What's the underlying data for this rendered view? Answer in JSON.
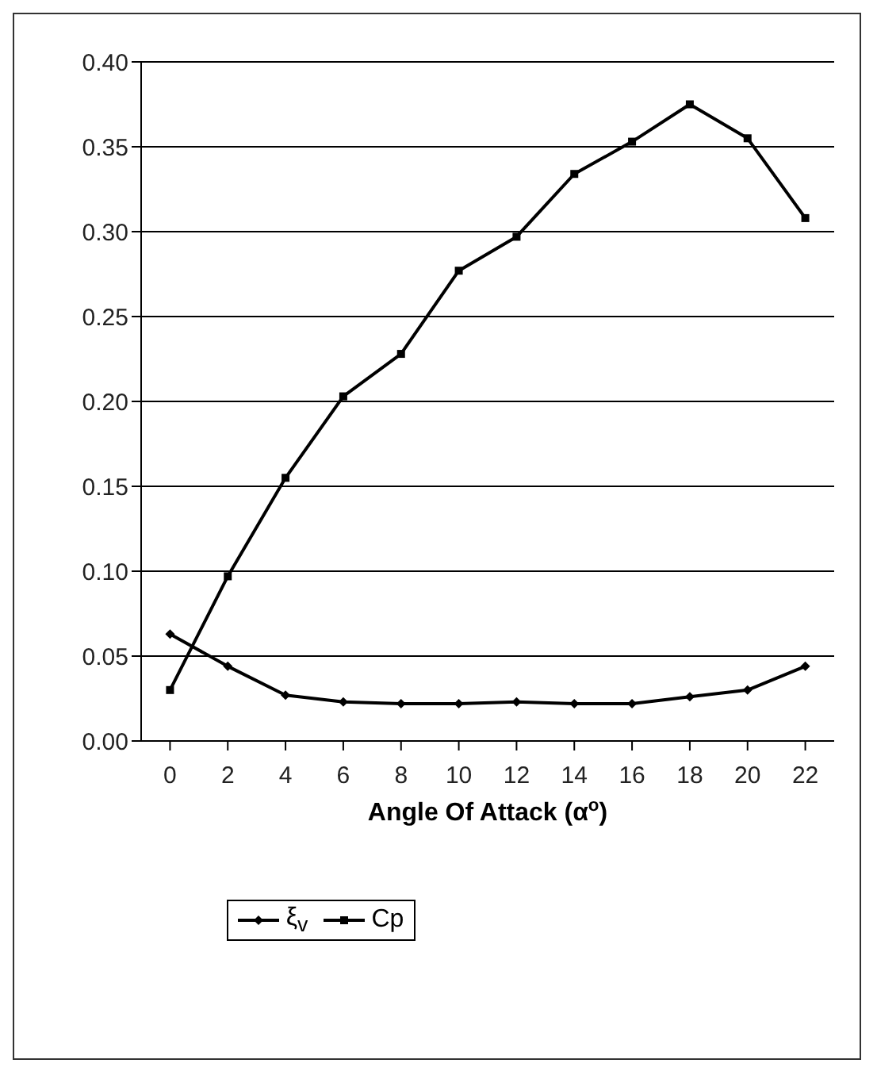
{
  "chart_data": {
    "type": "line",
    "xlabel": "Angle Of Attack (α$^{o}$)",
    "categories": [
      "0",
      "2",
      "4",
      "6",
      "8",
      "10",
      "12",
      "14",
      "16",
      "18",
      "20",
      "22"
    ],
    "series": [
      {
        "name": "ξ$_{v}$",
        "color": "#000000",
        "marker": "diamond",
        "values": [
          0.063,
          0.044,
          0.027,
          0.023,
          0.022,
          0.022,
          0.023,
          0.022,
          0.022,
          0.026,
          0.03,
          0.044
        ]
      },
      {
        "name": "Cp",
        "color": "#000000",
        "marker": "square",
        "values": [
          0.03,
          0.097,
          0.155,
          0.203,
          0.228,
          0.277,
          0.297,
          0.334,
          0.353,
          0.375,
          0.355,
          0.308
        ]
      }
    ],
    "ylim": [
      0,
      0.4
    ],
    "yticks": [
      {
        "value": 0,
        "label": "0.00"
      },
      {
        "value": 0.05,
        "label": "0.05"
      },
      {
        "value": 0.1,
        "label": "0.10"
      },
      {
        "value": 0.15,
        "label": "0.15"
      },
      {
        "value": 0.2,
        "label": "0.20"
      },
      {
        "value": 0.25,
        "label": "0.25"
      },
      {
        "value": 0.3,
        "label": "0.30"
      },
      {
        "value": 0.35,
        "label": "0.35"
      },
      {
        "value": 0.4,
        "label": "0.40"
      }
    ],
    "grid": "y",
    "legend": "bottom",
    "line_style": "solid"
  }
}
